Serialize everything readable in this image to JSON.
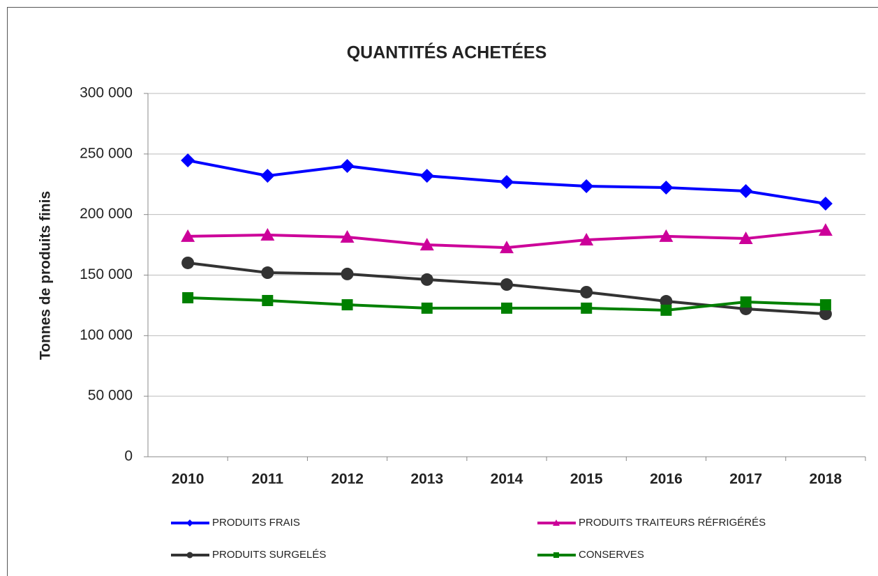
{
  "chart_data": {
    "type": "line",
    "title": "QUANTITÉS ACHETÉES",
    "y_label": "Tonnes de produits finis",
    "categories": [
      "2010",
      "2011",
      "2012",
      "2013",
      "2014",
      "2015",
      "2016",
      "2017",
      "2018"
    ],
    "series": [
      {
        "name": "PRODUITS FRAIS",
        "color": "#0000ff",
        "marker": "diamond",
        "values": [
          244700,
          232000,
          240100,
          232000,
          226900,
          223400,
          222300,
          219400,
          209000
        ]
      },
      {
        "name": "PRODUITS TRAITEURS RÉFRIGÉRÉS",
        "color": "#cc0099",
        "marker": "triangle",
        "values": [
          182000,
          183100,
          181400,
          175000,
          172700,
          179100,
          182000,
          180200,
          187100
        ]
      },
      {
        "name": "PRODUITS SURGELÉS",
        "color": "#333333",
        "marker": "circle",
        "values": [
          160100,
          152000,
          150900,
          146300,
          142200,
          135900,
          128400,
          122100,
          118000
        ]
      },
      {
        "name": "CONSERVES",
        "color": "#008000",
        "marker": "square",
        "values": [
          131300,
          129000,
          125500,
          122700,
          122700,
          122700,
          121000,
          127800,
          125500
        ]
      }
    ],
    "ylim": [
      0,
      300000
    ],
    "yticks": [
      0,
      {
        "value": 50000,
        "label": "50 000"
      },
      {
        "value": 100000,
        "label": "100 000"
      },
      {
        "value": 150000,
        "label": "150 000"
      },
      {
        "value": 200000,
        "label": "200 000"
      },
      {
        "value": 250000,
        "label": "250 000"
      },
      {
        "value": 300000,
        "label": "300 000"
      }
    ],
    "grid": true
  }
}
